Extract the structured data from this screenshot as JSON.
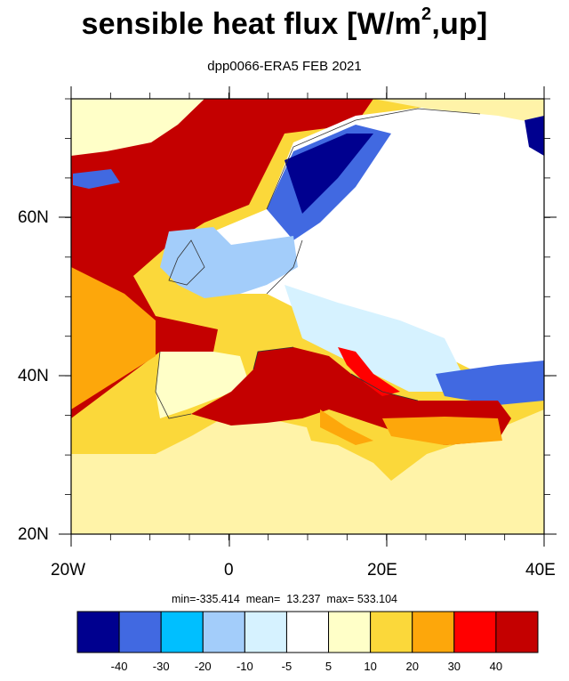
{
  "title": {
    "main": "sensible heat flux [W/m",
    "sup": "2",
    "tail": ",up]"
  },
  "subtitle": "dpp0066-ERA5  FEB 2021",
  "stats": {
    "text": "min=-335.414  mean=  13.237  max= 533.104",
    "min": -335.414,
    "mean": 13.237,
    "max": 533.104
  },
  "map": {
    "projection": "lat-lon",
    "lon_range": [
      -20,
      40
    ],
    "lat_range": [
      20,
      75
    ],
    "x_ticks": [
      "20W",
      "0",
      "20E",
      "40E"
    ],
    "y_ticks": [
      "60N",
      "40N",
      "20N"
    ]
  },
  "colorbar": {
    "levels": [
      "-40",
      "-30",
      "-20",
      "-10",
      "-5",
      "5",
      "10",
      "20",
      "30",
      "40"
    ],
    "colors": [
      "#00008f",
      "#4169e1",
      "#00bfff",
      "#a3cdfa",
      "#d6f2ff",
      "#ffffff",
      "#ffffc8",
      "#fbd83a",
      "#fda70b",
      "#ff0000",
      "#c40000"
    ]
  }
}
